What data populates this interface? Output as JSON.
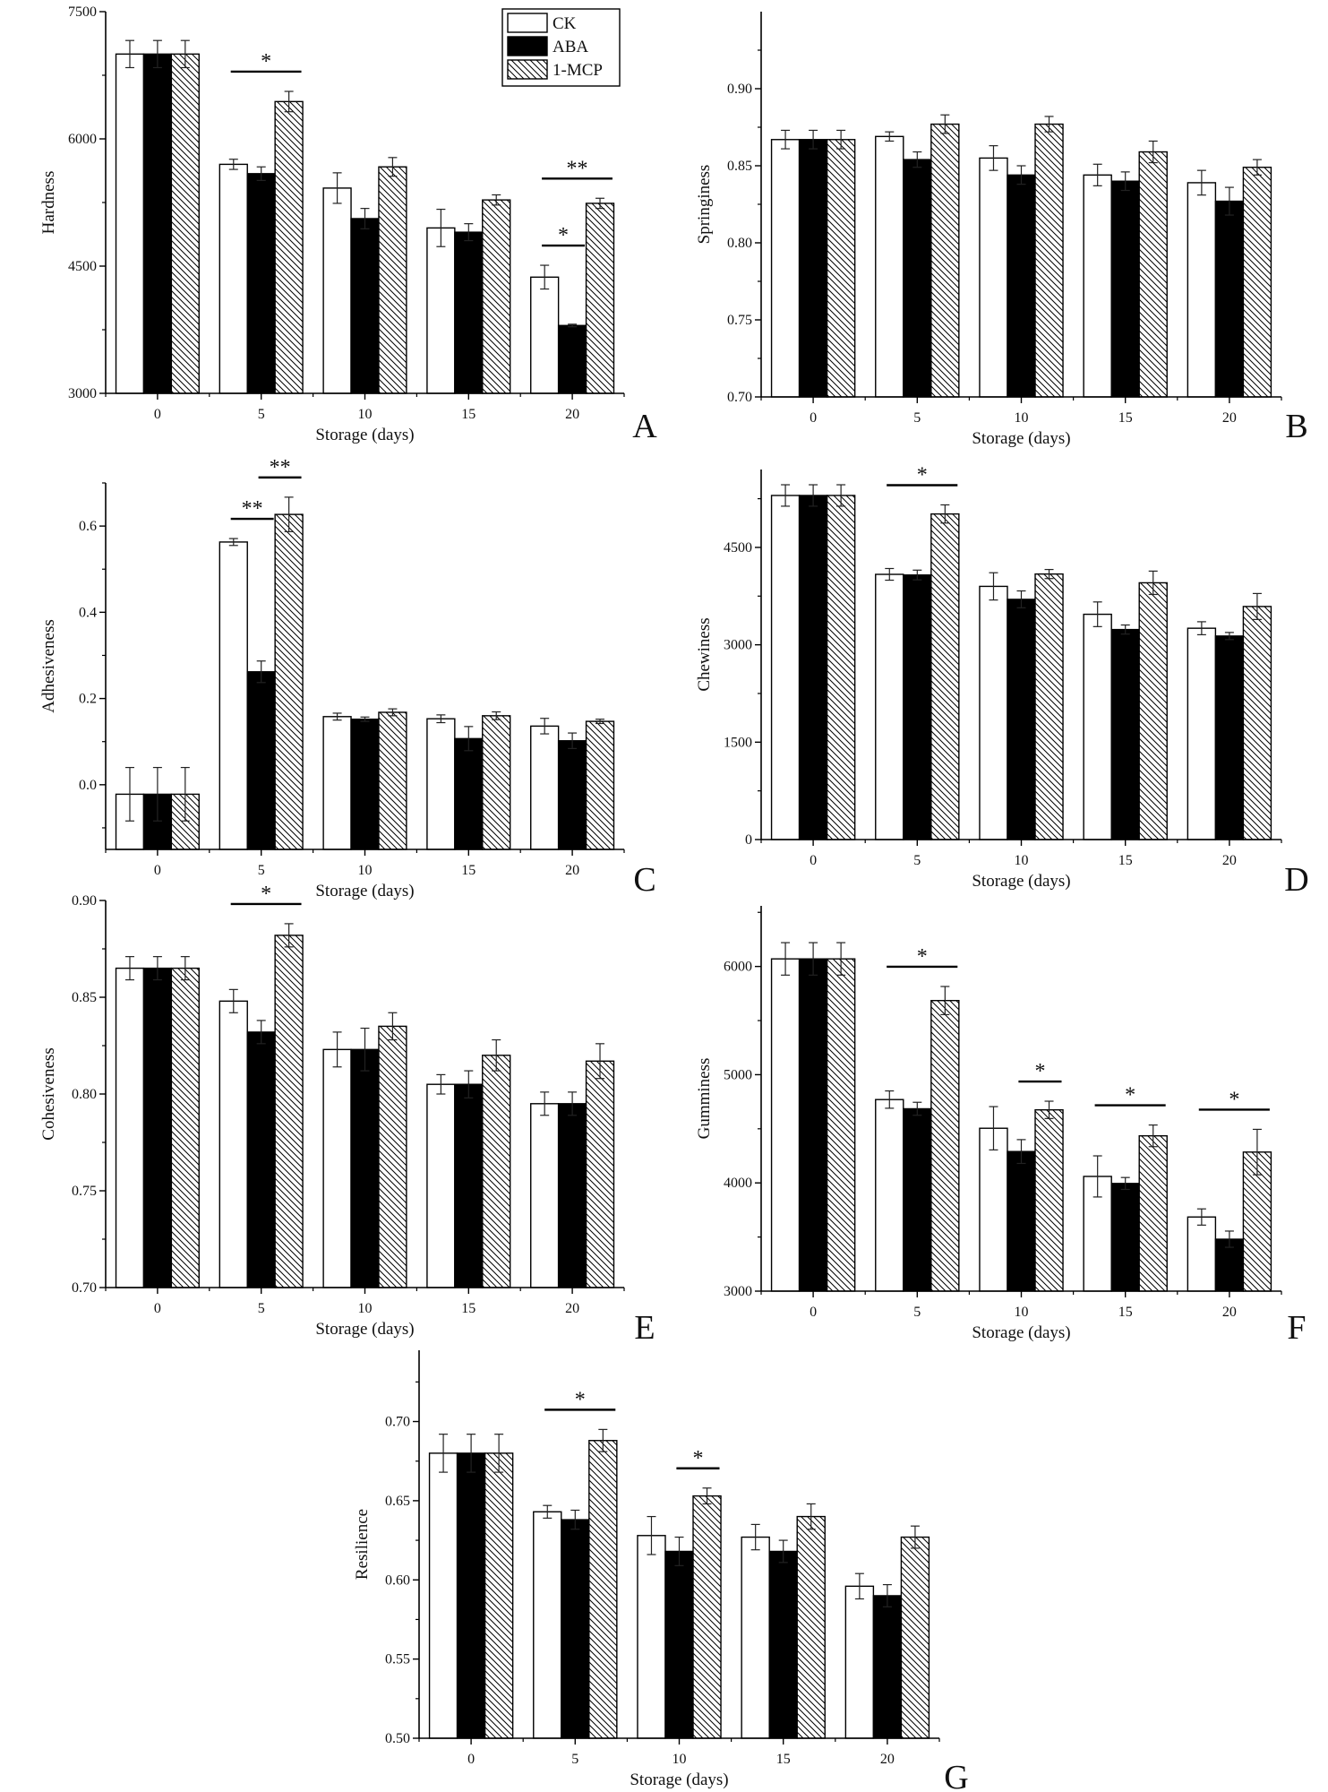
{
  "legend": {
    "entries": [
      "CK",
      "ABA",
      "1-MCP"
    ]
  },
  "colors": {
    "CK": "#ffffff",
    "ABA": "#000000",
    "1-MCP": "hatched #000000 on #ffffff",
    "axis": "#000000"
  },
  "chart_data": [
    {
      "type": "bar",
      "panel_label": "A",
      "xlabel": "Storage (days)",
      "ylabel": "Hardness",
      "categories": [
        "0",
        "5",
        "10",
        "15",
        "20"
      ],
      "ylim": [
        3000,
        7500
      ],
      "yticks": [
        "3000",
        "4500",
        "6000",
        "7500"
      ],
      "series": [
        {
          "name": "CK",
          "values": [
            7000,
            5700,
            5420,
            4950,
            4370
          ],
          "errors": [
            160,
            60,
            180,
            220,
            140
          ]
        },
        {
          "name": "ABA",
          "values": [
            7000,
            5590,
            5060,
            4900,
            3800
          ],
          "errors": [
            160,
            80,
            120,
            100,
            15
          ]
        },
        {
          "name": "1-MCP",
          "values": [
            7000,
            6440,
            5670,
            5280,
            5240
          ],
          "errors": [
            160,
            120,
            110,
            60,
            60
          ]
        }
      ],
      "significance": [
        {
          "category": "5",
          "from": "CK",
          "to": "1-MCP",
          "label": "*"
        },
        {
          "category": "20",
          "from": "CK",
          "to": "ABA",
          "label": "*"
        },
        {
          "category": "20",
          "from": "CK",
          "to": "1-MCP",
          "label": "**"
        }
      ],
      "grid": false
    },
    {
      "type": "bar",
      "panel_label": "B",
      "xlabel": "Storage (days)",
      "ylabel": "Springiness",
      "categories": [
        "0",
        "5",
        "10",
        "15",
        "20"
      ],
      "ylim": [
        0.7,
        0.95
      ],
      "yticks": [
        "0.70",
        "0.75",
        "0.80",
        "0.85",
        "0.90"
      ],
      "series": [
        {
          "name": "CK",
          "values": [
            0.867,
            0.869,
            0.855,
            0.844,
            0.839
          ],
          "errors": [
            0.006,
            0.003,
            0.008,
            0.007,
            0.008
          ]
        },
        {
          "name": "ABA",
          "values": [
            0.867,
            0.854,
            0.844,
            0.84,
            0.827
          ],
          "errors": [
            0.006,
            0.005,
            0.006,
            0.006,
            0.009
          ]
        },
        {
          "name": "1-MCP",
          "values": [
            0.867,
            0.877,
            0.877,
            0.859,
            0.849
          ],
          "errors": [
            0.006,
            0.006,
            0.005,
            0.007,
            0.005
          ]
        }
      ],
      "significance": [],
      "grid": false
    },
    {
      "type": "bar",
      "panel_label": "C",
      "xlabel": "Storage (days)",
      "ylabel": "Adhesiveness",
      "categories": [
        "0",
        "5",
        "10",
        "15",
        "20"
      ],
      "ylim": [
        -0.15,
        0.7
      ],
      "yticks": [
        "0.0",
        "0.2",
        "0.4",
        "0.6"
      ],
      "series": [
        {
          "name": "CK",
          "values": [
            -0.022,
            0.563,
            0.158,
            0.153,
            0.136
          ],
          "errors": [
            0.062,
            0.008,
            0.008,
            0.009,
            0.018
          ]
        },
        {
          "name": "ABA",
          "values": [
            -0.022,
            0.262,
            0.152,
            0.107,
            0.102
          ],
          "errors": [
            0.062,
            0.025,
            0.005,
            0.028,
            0.018
          ]
        },
        {
          "name": "1-MCP",
          "values": [
            -0.022,
            0.627,
            0.168,
            0.16,
            0.147
          ],
          "errors": [
            0.062,
            0.04,
            0.008,
            0.009,
            0.005
          ]
        }
      ],
      "significance": [
        {
          "category": "5",
          "from": "CK",
          "to": "ABA",
          "label": "**"
        },
        {
          "category": "5",
          "from": "ABA",
          "to": "1-MCP",
          "label": "**"
        }
      ],
      "grid": false
    },
    {
      "type": "bar",
      "panel_label": "D",
      "xlabel": "Storage (days)",
      "ylabel": "Chewiness",
      "categories": [
        "0",
        "5",
        "10",
        "15",
        "20"
      ],
      "ylim": [
        0,
        5700
      ],
      "yticks": [
        "0",
        "1500",
        "3000",
        "4500"
      ],
      "series": [
        {
          "name": "CK",
          "values": [
            5300,
            4085,
            3900,
            3470,
            3255
          ],
          "errors": [
            165,
            90,
            210,
            190,
            100
          ]
        },
        {
          "name": "ABA",
          "values": [
            5300,
            4075,
            3700,
            3235,
            3135
          ],
          "errors": [
            165,
            75,
            130,
            70,
            55
          ]
        },
        {
          "name": "1-MCP",
          "values": [
            5300,
            5015,
            4090,
            3955,
            3590
          ],
          "errors": [
            165,
            140,
            70,
            180,
            200
          ]
        }
      ],
      "significance": [
        {
          "category": "5",
          "from": "CK",
          "to": "1-MCP",
          "label": "*"
        }
      ],
      "grid": false
    },
    {
      "type": "bar",
      "panel_label": "E",
      "xlabel": "Storage (days)",
      "ylabel": "Cohesiveness",
      "categories": [
        "0",
        "5",
        "10",
        "15",
        "20"
      ],
      "ylim": [
        0.7,
        0.9
      ],
      "yticks": [
        "0.70",
        "0.75",
        "0.80",
        "0.85",
        "0.90"
      ],
      "series": [
        {
          "name": "CK",
          "values": [
            0.865,
            0.848,
            0.823,
            0.805,
            0.795
          ],
          "errors": [
            0.006,
            0.006,
            0.009,
            0.005,
            0.006
          ]
        },
        {
          "name": "ABA",
          "values": [
            0.865,
            0.832,
            0.823,
            0.805,
            0.795
          ],
          "errors": [
            0.006,
            0.006,
            0.011,
            0.007,
            0.006
          ]
        },
        {
          "name": "1-MCP",
          "values": [
            0.865,
            0.882,
            0.835,
            0.82,
            0.817
          ],
          "errors": [
            0.006,
            0.006,
            0.007,
            0.008,
            0.009
          ]
        }
      ],
      "significance": [
        {
          "category": "5",
          "from": "CK",
          "to": "1-MCP",
          "label": "*"
        }
      ],
      "grid": false
    },
    {
      "type": "bar",
      "panel_label": "F",
      "xlabel": "Storage (days)",
      "ylabel": "Gumminess",
      "categories": [
        "0",
        "5",
        "10",
        "15",
        "20"
      ],
      "ylim": [
        3000,
        6560
      ],
      "yticks": [
        "3000",
        "4000",
        "5000",
        "6000"
      ],
      "series": [
        {
          "name": "CK",
          "values": [
            6070,
            4770,
            4505,
            4060,
            3685
          ],
          "errors": [
            150,
            80,
            200,
            190,
            75
          ]
        },
        {
          "name": "ABA",
          "values": [
            6070,
            4685,
            4290,
            3995,
            3480
          ],
          "errors": [
            150,
            60,
            110,
            55,
            75
          ]
        },
        {
          "name": "1-MCP",
          "values": [
            6070,
            5685,
            4675,
            4435,
            4285
          ],
          "errors": [
            150,
            130,
            80,
            100,
            210
          ]
        }
      ],
      "significance": [
        {
          "category": "5",
          "from": "CK",
          "to": "1-MCP",
          "label": "*"
        },
        {
          "category": "10",
          "from": "ABA",
          "to": "1-MCP",
          "label": "*"
        },
        {
          "category": "15",
          "from": "CK",
          "to": "1-MCP",
          "label": "*"
        },
        {
          "category": "20",
          "from": "CK",
          "to": "1-MCP",
          "label": "*"
        }
      ],
      "grid": false
    },
    {
      "type": "bar",
      "panel_label": "G",
      "xlabel": "Storage (days)",
      "ylabel": "Resilience",
      "categories": [
        "0",
        "5",
        "10",
        "15",
        "20"
      ],
      "ylim": [
        0.5,
        0.745
      ],
      "yticks": [
        "0.50",
        "0.55",
        "0.60",
        "0.65",
        "0.70"
      ],
      "series": [
        {
          "name": "CK",
          "values": [
            0.68,
            0.643,
            0.628,
            0.627,
            0.596
          ],
          "errors": [
            0.012,
            0.004,
            0.012,
            0.008,
            0.008
          ]
        },
        {
          "name": "ABA",
          "values": [
            0.68,
            0.638,
            0.618,
            0.618,
            0.59
          ],
          "errors": [
            0.012,
            0.006,
            0.009,
            0.007,
            0.007
          ]
        },
        {
          "name": "1-MCP",
          "values": [
            0.68,
            0.688,
            0.653,
            0.64,
            0.627
          ],
          "errors": [
            0.012,
            0.007,
            0.005,
            0.008,
            0.007
          ]
        }
      ],
      "significance": [
        {
          "category": "5",
          "from": "CK",
          "to": "1-MCP",
          "label": "*"
        },
        {
          "category": "10",
          "from": "ABA",
          "to": "1-MCP",
          "label": "*"
        }
      ],
      "grid": false
    }
  ]
}
